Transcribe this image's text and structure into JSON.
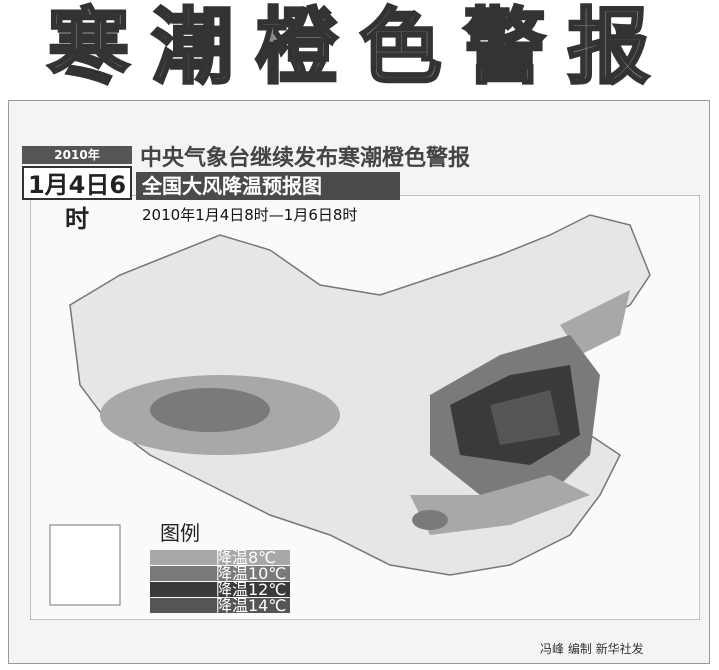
{
  "header": {
    "title": "寒潮橙色警报"
  },
  "badge": {
    "year": "2010年",
    "date": "1月4日6时"
  },
  "headline": "中央气象台继续发布寒潮橙色警报",
  "map": {
    "title": "全国大风降温预报图",
    "period": "2010年1月4日8时—1月6日8时"
  },
  "legend": {
    "title": "图例",
    "items": [
      {
        "label": "降温8℃",
        "color": "#a8a8a8"
      },
      {
        "label": "降温10℃",
        "color": "#7a7a7a"
      },
      {
        "label": "降温12℃",
        "color": "#3a3a3a"
      },
      {
        "label": "降温14℃",
        "color": "#555555"
      }
    ]
  },
  "credit": "冯峰 编制 新华社发"
}
